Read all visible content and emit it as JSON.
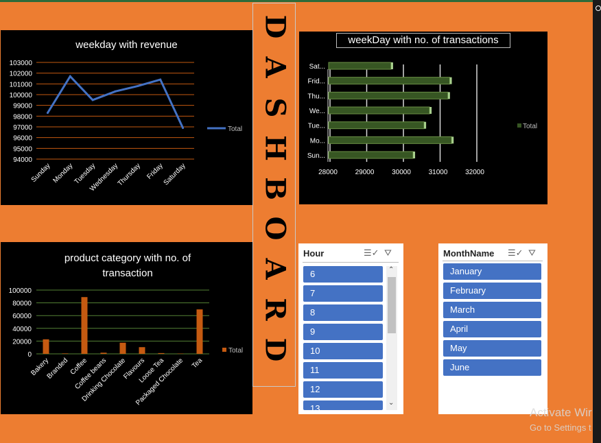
{
  "chart_data": [
    {
      "type": "line",
      "title": "weekday with revenue",
      "categories": [
        "Sunday",
        "Monday",
        "Tuesday",
        "Wednesday",
        "Thursday",
        "Friday",
        "Saturday"
      ],
      "series": [
        {
          "name": "Total",
          "values": [
            98300,
            101700,
            99500,
            100300,
            100800,
            101400,
            96900
          ]
        }
      ],
      "yticks": [
        "94000",
        "95000",
        "96000",
        "97000",
        "98000",
        "99000",
        "100000",
        "101000",
        "102000",
        "103000"
      ],
      "ylim": [
        94000,
        103000
      ],
      "grid": true,
      "legend": "right",
      "colors": {
        "line": "#4472c4",
        "grid": "#c55a11"
      }
    },
    {
      "type": "bar",
      "orientation": "horizontal",
      "title": "weekDay with no. of transactions",
      "categories": [
        "Sun...",
        "Mo...",
        "Tue...",
        "We...",
        "Thu...",
        "Frid...",
        "Sat..."
      ],
      "series": [
        {
          "name": "Total",
          "values": [
            30300,
            31350,
            30600,
            30750,
            31250,
            31300,
            29700
          ]
        }
      ],
      "xticks": [
        "28000",
        "29000",
        "30000",
        "31000",
        "32000"
      ],
      "xlim": [
        28000,
        32000
      ],
      "grid": true,
      "legend": "right",
      "colors": {
        "bar": "#375623",
        "grid": "#d9d9d9"
      }
    },
    {
      "type": "bar",
      "title": "product category with no. of transaction",
      "categories": [
        "Bakery",
        "Branded",
        "Coffee",
        "Coffee beans",
        "Drinking Chocolate",
        "Flavours",
        "Loose Tea",
        "Packaged Chocolate",
        "Tea"
      ],
      "series": [
        {
          "name": "Total",
          "values": [
            22800,
            700,
            89000,
            1800,
            17500,
            10500,
            1200,
            500,
            69700
          ]
        }
      ],
      "yticks": [
        "0",
        "20000",
        "40000",
        "60000",
        "80000",
        "100000"
      ],
      "ylim": [
        0,
        100000
      ],
      "grid": true,
      "legend": "right",
      "colors": {
        "bar": "#c55a11",
        "grid": "#548235"
      }
    }
  ],
  "banner": {
    "letters": [
      "D",
      "A",
      "S",
      "H",
      "B",
      "O",
      "A",
      "R",
      "D"
    ]
  },
  "hour_slicer": {
    "title": "Hour",
    "items": [
      "6",
      "7",
      "8",
      "9",
      "10",
      "11",
      "12",
      "13"
    ]
  },
  "month_slicer": {
    "title": "MonthName",
    "items": [
      "January",
      "February",
      "March",
      "April",
      "May",
      "June"
    ]
  },
  "icons": {
    "multiselect": "multi-select-icon",
    "clear_filter": "clear-filter-icon"
  },
  "watermark": {
    "line1": "Activate Wir",
    "line2": "Go to Settings t"
  },
  "colors": {
    "background": "#ed7d31",
    "panel": "#000000",
    "slicer_item": "#4472c4"
  }
}
